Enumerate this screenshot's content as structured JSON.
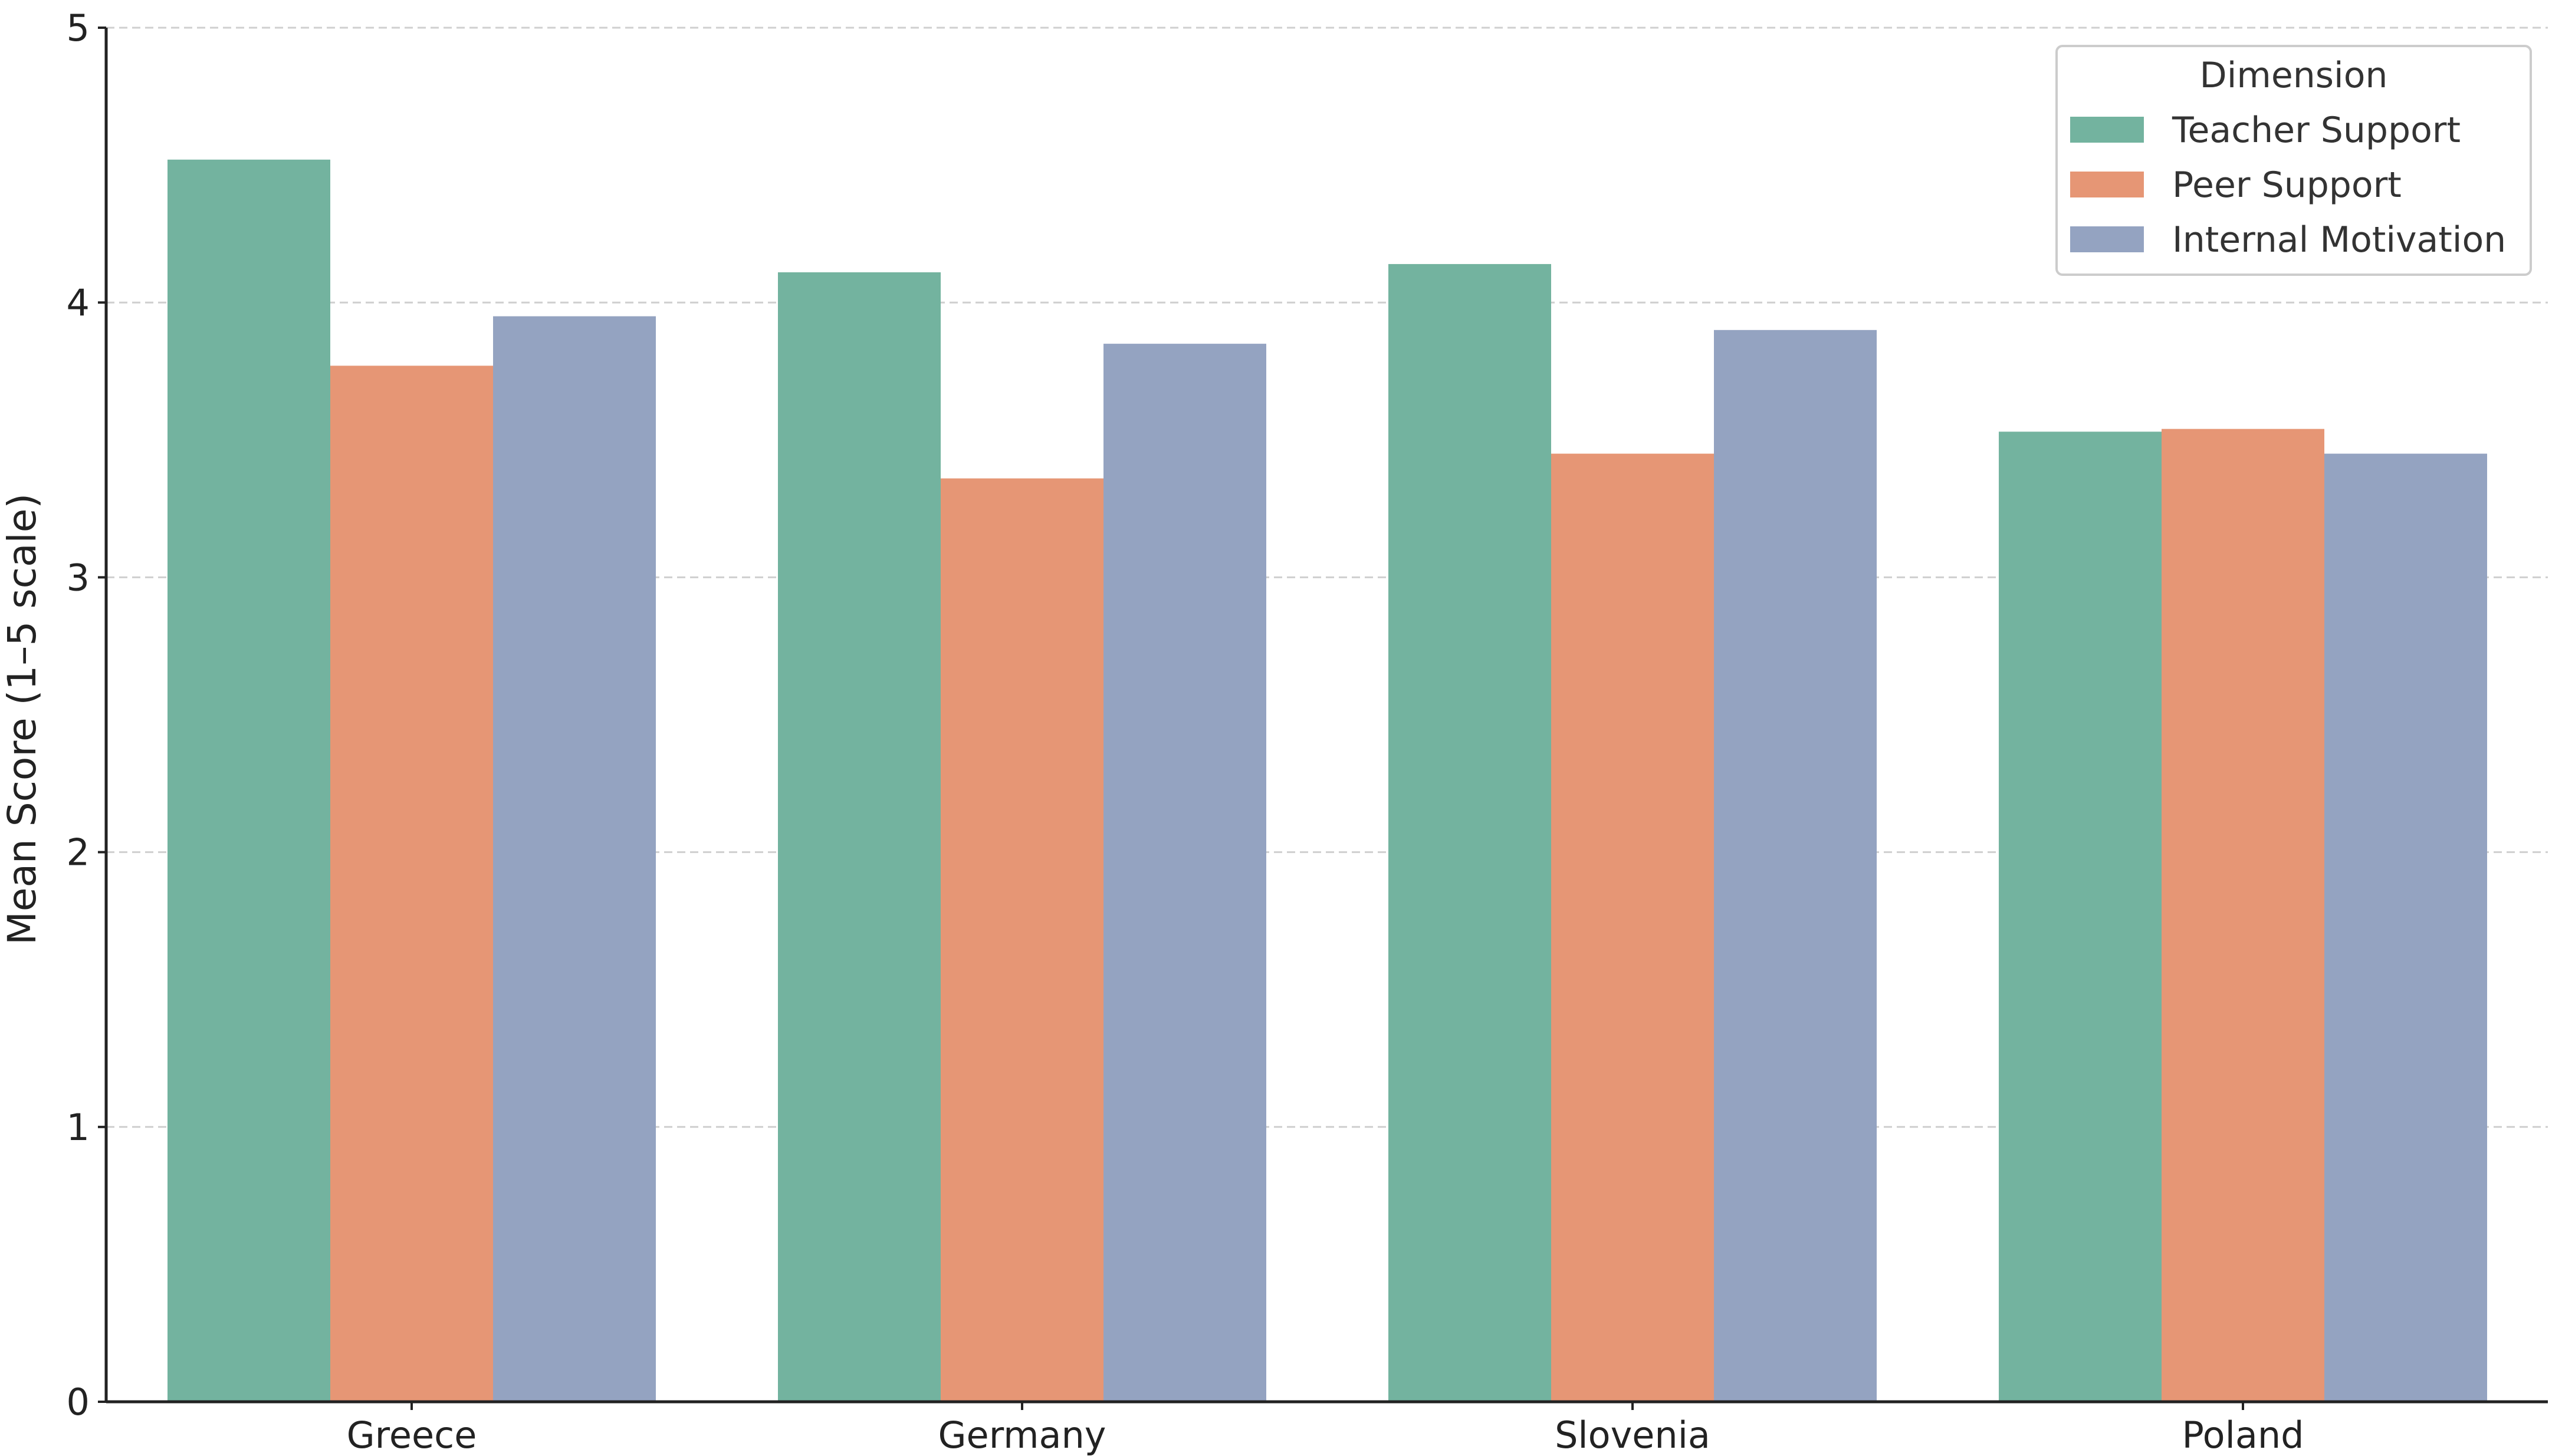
{
  "chart_data": {
    "type": "bar",
    "title": "",
    "xlabel": "",
    "ylabel": "Mean Score (1–5 scale)",
    "ylim": [
      0,
      5
    ],
    "yticks": [
      0,
      1,
      2,
      3,
      4,
      5
    ],
    "grid": "horizontal dashed",
    "legend_title": "Dimension",
    "legend_position": "top-right",
    "categories": [
      "Greece",
      "Germany",
      "Slovenia",
      "Poland"
    ],
    "series": [
      {
        "name": "Teacher Support",
        "color": "#73b39f",
        "values": [
          4.52,
          4.11,
          4.14,
          3.53
        ]
      },
      {
        "name": "Peer Support",
        "color": "#e69675",
        "values": [
          3.77,
          3.36,
          3.45,
          3.54
        ]
      },
      {
        "name": "Internal Motivation",
        "color": "#94a3c1",
        "values": [
          3.95,
          3.85,
          3.9,
          3.45
        ]
      }
    ]
  }
}
